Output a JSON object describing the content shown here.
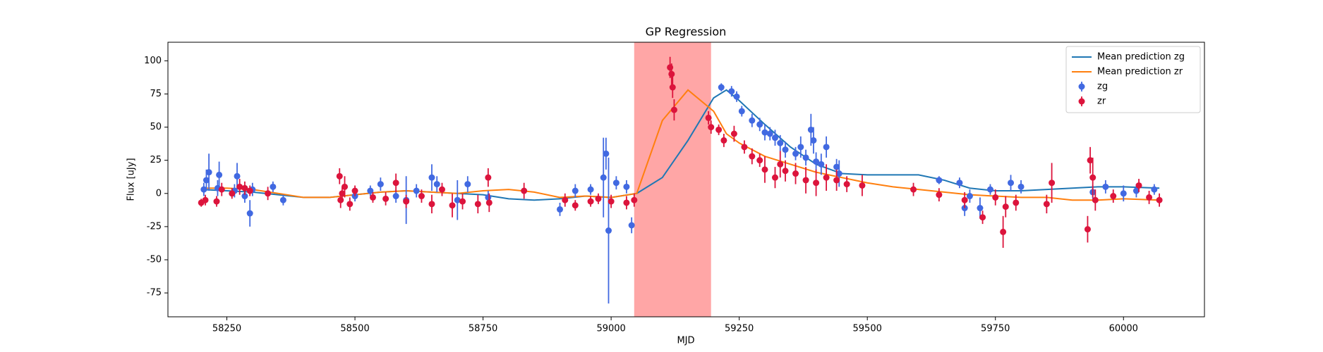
{
  "chart_data": {
    "type": "errorbar",
    "title": "GP Regression",
    "xlabel": "MJD",
    "ylabel": "Flux [uJy]",
    "xlim": [
      58135,
      60158
    ],
    "ylim": [
      -93,
      114
    ],
    "xticks": [
      58250,
      58500,
      58750,
      59000,
      59250,
      59500,
      59750,
      60000
    ],
    "yticks": [
      -75,
      -50,
      -25,
      0,
      25,
      50,
      75,
      100
    ],
    "legend": "upper right",
    "span": {
      "xmin": 59045,
      "xmax": 59195,
      "color": "#ffa6a6"
    },
    "lines": [
      {
        "name": "Mean prediction zg",
        "color": "#1f77b4",
        "x": [
          58200,
          58250,
          58300,
          58350,
          58400,
          58450,
          58500,
          58550,
          58600,
          58650,
          58700,
          58750,
          58800,
          58850,
          58900,
          58950,
          59000,
          59050,
          59100,
          59150,
          59200,
          59225,
          59250,
          59300,
          59350,
          59400,
          59450,
          59500,
          59550,
          59600,
          59650,
          59700,
          59750,
          59800,
          59850,
          59900,
          59950,
          60000,
          60070
        ],
        "values": [
          3,
          2,
          1,
          -1,
          -3,
          -3,
          -1,
          1,
          2,
          1,
          0,
          -1,
          -4,
          -5,
          -4,
          -2,
          -3,
          0,
          12,
          40,
          72,
          78,
          70,
          52,
          35,
          22,
          15,
          14,
          14,
          14,
          10,
          4,
          2,
          2,
          3,
          4,
          5,
          5,
          4
        ]
      },
      {
        "name": "Mean prediction zr",
        "color": "#ff7f0e",
        "x": [
          58200,
          58250,
          58300,
          58350,
          58400,
          58450,
          58500,
          58550,
          58600,
          58650,
          58700,
          58750,
          58800,
          58850,
          58900,
          58950,
          59000,
          59050,
          59100,
          59150,
          59200,
          59225,
          59250,
          59300,
          59350,
          59400,
          59450,
          59500,
          59550,
          59600,
          59650,
          59700,
          59750,
          59800,
          59850,
          59900,
          59950,
          60000,
          60070
        ],
        "values": [
          4,
          4,
          3,
          0,
          -3,
          -3,
          -1,
          1,
          2,
          1,
          0,
          2,
          3,
          1,
          -3,
          -2,
          -3,
          0,
          55,
          78,
          62,
          45,
          38,
          28,
          22,
          16,
          12,
          8,
          5,
          3,
          1,
          -1,
          -2,
          -3,
          -3,
          -5,
          -5,
          -4,
          -5
        ]
      }
    ],
    "series": [
      {
        "name": "zg",
        "color": "#4169e1",
        "x": [
          58205,
          58210,
          58215,
          58232,
          58235,
          58265,
          58270,
          58285,
          58295,
          58300,
          58340,
          58360,
          58500,
          58530,
          58550,
          58580,
          58600,
          58620,
          58650,
          58660,
          58700,
          58720,
          58760,
          58900,
          58930,
          58960,
          58985,
          58990,
          58995,
          59010,
          59030,
          59040,
          59215,
          59235,
          59245,
          59255,
          59275,
          59290,
          59300,
          59310,
          59320,
          59330,
          59340,
          59360,
          59370,
          59380,
          59390,
          59395,
          59400,
          59410,
          59420,
          59440,
          59445,
          59640,
          59680,
          59690,
          59700,
          59720,
          59740,
          59780,
          59800,
          59940,
          59965,
          60000,
          60025,
          60060
        ],
        "values": [
          3,
          10,
          16,
          4,
          14,
          2,
          13,
          -2,
          -15,
          3,
          5,
          -5,
          -2,
          2,
          7,
          -2,
          -5,
          2,
          12,
          7,
          -5,
          7,
          -3,
          -12,
          2,
          3,
          12,
          30,
          -28,
          8,
          5,
          -24,
          80,
          77,
          73,
          62,
          55,
          52,
          46,
          45,
          42,
          38,
          33,
          30,
          35,
          27,
          48,
          40,
          24,
          22,
          35,
          20,
          15,
          10,
          8,
          -11,
          -2,
          -11,
          3,
          8,
          5,
          1,
          5,
          0,
          2,
          3
        ],
        "errors": [
          5,
          8,
          14,
          6,
          10,
          5,
          10,
          5,
          10,
          5,
          4,
          4,
          4,
          4,
          5,
          5,
          18,
          5,
          10,
          6,
          15,
          6,
          5,
          5,
          5,
          4,
          30,
          12,
          55,
          5,
          5,
          6,
          3,
          4,
          4,
          4,
          5,
          5,
          6,
          5,
          6,
          6,
          6,
          5,
          8,
          6,
          12,
          10,
          7,
          8,
          8,
          6,
          10,
          3,
          4,
          6,
          5,
          8,
          4,
          6,
          5,
          5,
          5,
          6,
          5,
          4
        ]
      },
      {
        "name": "zr",
        "color": "#dc143c",
        "x": [
          58200,
          58208,
          58230,
          58240,
          58260,
          58275,
          58285,
          58295,
          58330,
          58470,
          58472,
          58475,
          58480,
          58490,
          58500,
          58535,
          58560,
          58580,
          58600,
          58630,
          58650,
          58670,
          58690,
          58710,
          58740,
          58760,
          58762,
          58830,
          58910,
          58930,
          58960,
          58975,
          59000,
          59030,
          59045,
          59115,
          59118,
          59120,
          59123,
          59190,
          59195,
          59210,
          59220,
          59240,
          59260,
          59275,
          59290,
          59300,
          59320,
          59330,
          59340,
          59360,
          59380,
          59400,
          59420,
          59440,
          59460,
          59490,
          59590,
          59640,
          59690,
          59725,
          59750,
          59765,
          59770,
          59790,
          59850,
          59860,
          59930,
          59935,
          59940,
          59945,
          59980,
          60030,
          60050,
          60070
        ],
        "values": [
          -7,
          -5,
          -6,
          3,
          0,
          5,
          4,
          2,
          0,
          13,
          -5,
          0,
          5,
          -8,
          2,
          -3,
          -4,
          8,
          -6,
          -2,
          -8,
          3,
          -9,
          -6,
          -8,
          12,
          -7,
          2,
          -5,
          -9,
          -6,
          -4,
          -6,
          -7,
          -5,
          95,
          90,
          80,
          63,
          57,
          50,
          48,
          40,
          45,
          35,
          28,
          25,
          18,
          12,
          22,
          17,
          15,
          10,
          8,
          12,
          10,
          7,
          6,
          3,
          -1,
          -5,
          -18,
          -3,
          -29,
          -10,
          -7,
          -8,
          8,
          -27,
          25,
          12,
          -5,
          -2,
          6,
          -3,
          -5
        ],
        "errors": [
          3,
          4,
          4,
          5,
          4,
          6,
          5,
          4,
          5,
          6,
          6,
          5,
          8,
          5,
          4,
          4,
          5,
          7,
          5,
          5,
          7,
          5,
          9,
          6,
          7,
          7,
          7,
          6,
          5,
          4,
          4,
          4,
          5,
          5,
          5,
          8,
          8,
          8,
          8,
          5,
          5,
          4,
          5,
          6,
          5,
          6,
          5,
          10,
          8,
          10,
          8,
          8,
          10,
          10,
          10,
          8,
          6,
          8,
          5,
          5,
          6,
          5,
          6,
          12,
          8,
          6,
          7,
          15,
          10,
          10,
          15,
          8,
          5,
          5,
          5,
          5
        ]
      }
    ]
  }
}
